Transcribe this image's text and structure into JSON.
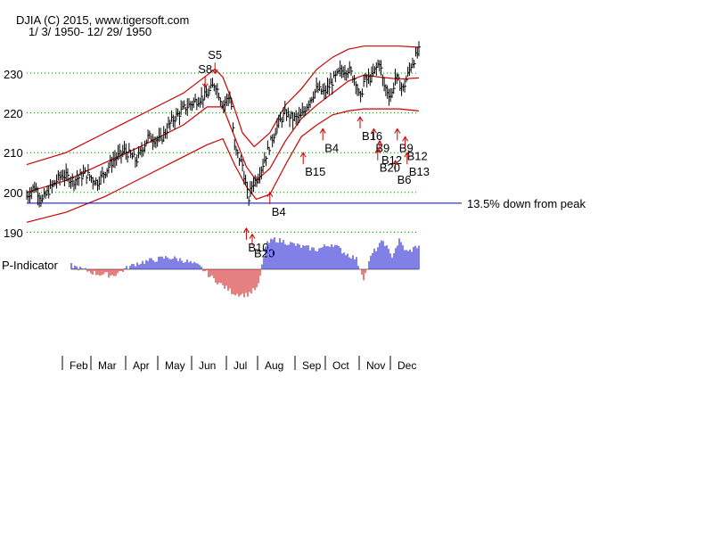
{
  "chart_data": {
    "type": "line",
    "title": "DJIA   (C) 2015, www.tigersoft.com",
    "subtitle": "1/ 3/ 1950- 12/ 29/ 1950",
    "y_ticks": [
      190,
      200,
      210,
      220,
      230
    ],
    "ylim": [
      189,
      238
    ],
    "months": [
      "Feb",
      "Mar",
      "Apr",
      "May",
      "Jun",
      "Jul",
      "Aug",
      "Sep",
      "Oct",
      "Nov",
      "Dec"
    ],
    "support_line": {
      "value": 197.3,
      "label": "13.5% down from peak"
    },
    "indicator_label": "P-Indicator",
    "colors": {
      "price": "#000000",
      "bands": "#cc0000",
      "support": "#0000cc",
      "grid": "#008000",
      "positive": "#0000cc",
      "negative": "#cc0000"
    },
    "price_path": [
      [
        0,
        199.0
      ],
      [
        0.02,
        201.5
      ],
      [
        0.04,
        198.0
      ],
      [
        0.06,
        201.0
      ],
      [
        0.09,
        204.5
      ],
      [
        0.12,
        203.0
      ],
      [
        0.15,
        204.8
      ],
      [
        0.18,
        202.5
      ],
      [
        0.22,
        208.0
      ],
      [
        0.25,
        210.5
      ],
      [
        0.28,
        208.0
      ],
      [
        0.31,
        214.0
      ],
      [
        0.34,
        213.0
      ],
      [
        0.37,
        218.0
      ],
      [
        0.4,
        221.0
      ],
      [
        0.43,
        223.0
      ],
      [
        0.46,
        224.5
      ],
      [
        0.48,
        227.5
      ],
      [
        0.5,
        222.0
      ],
      [
        0.52,
        224.5
      ],
      [
        0.53,
        211.0
      ],
      [
        0.55,
        207.0
      ],
      [
        0.565,
        198.0
      ],
      [
        0.575,
        202.0
      ],
      [
        0.59,
        204.0
      ],
      [
        0.6,
        206.5
      ],
      [
        0.62,
        212.0
      ],
      [
        0.64,
        217.0
      ],
      [
        0.66,
        220.0
      ],
      [
        0.68,
        218.5
      ],
      [
        0.7,
        219.0
      ],
      [
        0.72,
        223.0
      ],
      [
        0.74,
        226.0
      ],
      [
        0.76,
        225.0
      ],
      [
        0.78,
        228.0
      ],
      [
        0.8,
        230.5
      ],
      [
        0.82,
        231.0
      ],
      [
        0.84,
        228.0
      ],
      [
        0.85,
        223.0
      ],
      [
        0.86,
        228.0
      ],
      [
        0.88,
        229.0
      ],
      [
        0.9,
        233.0
      ],
      [
        0.91,
        227.0
      ],
      [
        0.93,
        224.0
      ],
      [
        0.94,
        229.0
      ],
      [
        0.96,
        226.0
      ],
      [
        0.98,
        232.0
      ],
      [
        1.0,
        235.5
      ]
    ],
    "upper_band": [
      [
        0,
        207.0
      ],
      [
        0.1,
        210.0
      ],
      [
        0.2,
        215.0
      ],
      [
        0.3,
        220.0
      ],
      [
        0.4,
        225.0
      ],
      [
        0.46,
        229.5
      ],
      [
        0.48,
        231.0
      ],
      [
        0.5,
        229.0
      ],
      [
        0.52,
        224.0
      ],
      [
        0.55,
        215.0
      ],
      [
        0.58,
        211.5
      ],
      [
        0.62,
        215.0
      ],
      [
        0.66,
        222.0
      ],
      [
        0.7,
        226.0
      ],
      [
        0.74,
        231.0
      ],
      [
        0.78,
        234.0
      ],
      [
        0.82,
        236.0
      ],
      [
        0.86,
        236.8
      ],
      [
        0.9,
        236.8
      ],
      [
        0.95,
        236.8
      ],
      [
        1.0,
        236.5
      ]
    ],
    "middle_band": [
      [
        0,
        200.0
      ],
      [
        0.1,
        203.0
      ],
      [
        0.2,
        207.5
      ],
      [
        0.3,
        212.0
      ],
      [
        0.4,
        217.0
      ],
      [
        0.46,
        221.5
      ],
      [
        0.5,
        221.5
      ],
      [
        0.53,
        214.0
      ],
      [
        0.56,
        206.5
      ],
      [
        0.585,
        203.0
      ],
      [
        0.62,
        206.0
      ],
      [
        0.66,
        213.0
      ],
      [
        0.7,
        218.5
      ],
      [
        0.74,
        222.0
      ],
      [
        0.78,
        225.0
      ],
      [
        0.82,
        228.0
      ],
      [
        0.86,
        229.5
      ],
      [
        0.9,
        229.0
      ],
      [
        0.95,
        228.5
      ],
      [
        1.0,
        228.8
      ]
    ],
    "lower_band": [
      [
        0,
        192.5
      ],
      [
        0.1,
        195.0
      ],
      [
        0.2,
        199.0
      ],
      [
        0.3,
        204.0
      ],
      [
        0.4,
        209.0
      ],
      [
        0.46,
        212.0
      ],
      [
        0.5,
        213.5
      ],
      [
        0.53,
        207.0
      ],
      [
        0.56,
        201.5
      ],
      [
        0.585,
        198.3
      ],
      [
        0.62,
        199.5
      ],
      [
        0.66,
        207.0
      ],
      [
        0.7,
        214.0
      ],
      [
        0.74,
        217.0
      ],
      [
        0.78,
        219.5
      ],
      [
        0.82,
        220.5
      ],
      [
        0.86,
        221.0
      ],
      [
        0.9,
        221.0
      ],
      [
        0.95,
        221.0
      ],
      [
        1.0,
        220.5
      ]
    ],
    "p_indicator": [
      [
        0,
        0.2
      ],
      [
        0.04,
        0.1
      ],
      [
        0.07,
        0.3
      ],
      [
        0.1,
        0.2
      ],
      [
        0.14,
        0.0
      ],
      [
        0.18,
        -0.15
      ],
      [
        0.22,
        -0.2
      ],
      [
        0.25,
        0.0
      ],
      [
        0.28,
        0.2
      ],
      [
        0.32,
        0.3
      ],
      [
        0.36,
        0.4
      ],
      [
        0.4,
        0.3
      ],
      [
        0.44,
        0.1
      ],
      [
        0.47,
        -0.25
      ],
      [
        0.5,
        -0.55
      ],
      [
        0.53,
        -0.8
      ],
      [
        0.56,
        -0.85
      ],
      [
        0.59,
        -0.6
      ],
      [
        0.61,
        0.8
      ],
      [
        0.63,
        1.0
      ],
      [
        0.66,
        0.9
      ],
      [
        0.7,
        0.75
      ],
      [
        0.74,
        0.65
      ],
      [
        0.78,
        0.85
      ],
      [
        0.81,
        0.55
      ],
      [
        0.84,
        0.35
      ],
      [
        0.86,
        -0.3
      ],
      [
        0.88,
        0.5
      ],
      [
        0.91,
        0.95
      ],
      [
        0.93,
        0.4
      ],
      [
        0.95,
        0.95
      ],
      [
        0.97,
        0.55
      ],
      [
        1.0,
        0.8
      ]
    ],
    "signals": [
      {
        "label": "S8",
        "kind": "sell",
        "x": 0.455,
        "value": 226.0
      },
      {
        "label": "S5",
        "kind": "sell",
        "x": 0.48,
        "value": 229.5
      },
      {
        "label": "B4",
        "kind": "buy",
        "x": 0.62,
        "value": 200.0
      },
      {
        "label": "B15",
        "kind": "buy",
        "x": 0.705,
        "value": 210.0
      },
      {
        "label": "B4",
        "kind": "buy",
        "x": 0.755,
        "value": 216.0
      },
      {
        "label": "B16",
        "kind": "buy",
        "x": 0.85,
        "value": 219.0
      },
      {
        "label": "B9",
        "kind": "buy",
        "x": 0.885,
        "value": 216.0
      },
      {
        "label": "B12",
        "kind": "buy",
        "x": 0.9,
        "value": 213.0
      },
      {
        "label": "B20",
        "kind": "buy",
        "x": 0.895,
        "value": 211.0
      },
      {
        "label": "B9",
        "kind": "buy",
        "x": 0.945,
        "value": 216.0
      },
      {
        "label": "B6",
        "kind": "buy",
        "x": 0.94,
        "value": 208.0
      },
      {
        "label": "B12",
        "kind": "buy",
        "x": 0.965,
        "value": 214.0
      },
      {
        "label": "B13",
        "kind": "buy",
        "x": 0.97,
        "value": 210.0
      },
      {
        "label": "B10",
        "kind": "buy",
        "x": 0.56,
        "value": 191.0
      },
      {
        "label": "B20",
        "kind": "buy",
        "x": 0.575,
        "value": 189.5
      }
    ]
  }
}
